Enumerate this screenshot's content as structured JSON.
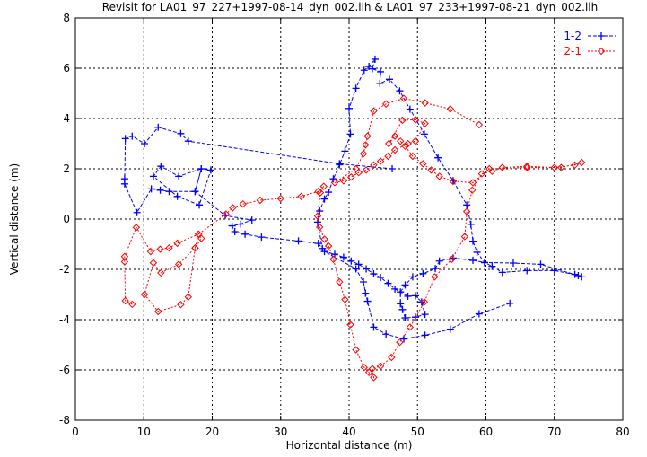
{
  "chart_data": {
    "type": "line",
    "title": "Revisit for LA01_97_227+1997-08-14_dyn_002.llh & LA01_97_233+1997-08-21_dyn_002.llh",
    "xlabel": "Horizontal distance (m)",
    "ylabel": "Vertical distance (m)",
    "xlim": [
      0,
      80
    ],
    "ylim": [
      -8,
      8
    ],
    "xticks": [
      "0",
      "10",
      "20",
      "30",
      "40",
      "50",
      "60",
      "70",
      "80"
    ],
    "yticks": [
      "-8",
      "-6",
      "-4",
      "-2",
      "0",
      "2",
      "4",
      "6",
      "8"
    ],
    "grid": true,
    "legend_position": "top-right",
    "series": [
      {
        "name": "1-2",
        "color": "#0000ff",
        "marker": "plus",
        "points": [
          [
            46.3,
            2.0
          ],
          [
            38.6,
            2.2
          ],
          [
            16.5,
            3.1
          ],
          [
            15.4,
            3.4
          ],
          [
            12.1,
            3.65
          ],
          [
            10.1,
            3.0
          ],
          [
            8.3,
            3.3
          ],
          [
            7.3,
            3.2
          ],
          [
            7.2,
            1.6
          ],
          [
            7.2,
            1.4
          ],
          [
            9.0,
            0.26
          ],
          [
            11.1,
            1.2
          ],
          [
            12.4,
            1.15
          ],
          [
            13.7,
            1.1
          ],
          [
            17.5,
            1.1
          ],
          [
            18.4,
            2.0
          ],
          [
            19.8,
            1.95
          ],
          [
            18.1,
            0.56
          ],
          [
            14.9,
            0.9
          ],
          [
            11.4,
            1.7
          ],
          [
            12.5,
            2.1
          ],
          [
            15.1,
            1.7
          ],
          [
            18.4,
            2.0
          ],
          [
            17.5,
            1.1
          ],
          [
            21.9,
            0.14
          ],
          [
            25.8,
            -0.04
          ],
          [
            24.1,
            -0.2
          ],
          [
            22.9,
            -0.27
          ],
          [
            23.3,
            -0.5
          ],
          [
            24.8,
            -0.6
          ],
          [
            27.2,
            -0.72
          ],
          [
            32.6,
            -0.87
          ],
          [
            35.5,
            -0.97
          ],
          [
            36.1,
            -1.17
          ],
          [
            35.4,
            -0.12
          ],
          [
            35.7,
            0.32
          ],
          [
            36.4,
            0.8
          ],
          [
            37.0,
            1.07
          ],
          [
            37.7,
            1.6
          ],
          [
            38.6,
            2.16
          ],
          [
            39.4,
            2.7
          ],
          [
            40.2,
            3.38
          ],
          [
            40.0,
            4.4
          ],
          [
            41.0,
            5.2
          ],
          [
            42.2,
            5.92
          ],
          [
            42.9,
            6.07
          ],
          [
            43.8,
            6.36
          ],
          [
            43.4,
            5.98
          ],
          [
            44.6,
            5.86
          ],
          [
            44.5,
            5.4
          ],
          [
            45.9,
            5.56
          ],
          [
            47.4,
            5.1
          ],
          [
            48.9,
            4.37
          ],
          [
            51.0,
            3.38
          ],
          [
            53.0,
            2.44
          ],
          [
            55.2,
            1.53
          ],
          [
            57.2,
            0.56
          ],
          [
            57.8,
            -0.21
          ],
          [
            58.1,
            -0.88
          ],
          [
            58.7,
            -1.32
          ],
          [
            59.8,
            -1.73
          ],
          [
            60.9,
            -1.88
          ],
          [
            62.4,
            -2.12
          ],
          [
            66.0,
            -2.05
          ],
          [
            70.0,
            -2.05
          ],
          [
            73.0,
            -2.2
          ],
          [
            74.0,
            -2.3
          ],
          [
            73.5,
            -2.25
          ],
          [
            68.0,
            -1.8
          ],
          [
            64.0,
            -1.75
          ],
          [
            59.8,
            -1.73
          ],
          [
            58.1,
            -1.64
          ],
          [
            55.2,
            -1.55
          ],
          [
            53.2,
            -1.67
          ],
          [
            52.6,
            -1.97
          ],
          [
            50.8,
            -2.17
          ],
          [
            49.3,
            -2.3
          ],
          [
            48.2,
            -2.62
          ],
          [
            47.5,
            -2.9
          ],
          [
            47.5,
            -3.37
          ],
          [
            47.8,
            -3.6
          ],
          [
            48.2,
            -3.93
          ],
          [
            49.7,
            -3.9
          ],
          [
            51.1,
            -3.79
          ],
          [
            50.6,
            -3.3
          ],
          [
            49.7,
            -3.05
          ],
          [
            48.6,
            -3.07
          ],
          [
            46.7,
            -2.78
          ],
          [
            45.7,
            -2.56
          ],
          [
            44.6,
            -2.32
          ],
          [
            43.6,
            -2.18
          ],
          [
            42.5,
            -1.98
          ],
          [
            41.4,
            -1.8
          ],
          [
            40.3,
            -1.67
          ],
          [
            39.2,
            -1.52
          ],
          [
            37.9,
            -1.4
          ],
          [
            36.4,
            -1.29
          ],
          [
            41.0,
            -1.98
          ],
          [
            42.1,
            -2.5
          ],
          [
            42.4,
            -2.95
          ],
          [
            42.7,
            -3.27
          ],
          [
            43.6,
            -4.3
          ],
          [
            45.4,
            -4.58
          ],
          [
            48.0,
            -4.77
          ],
          [
            51.1,
            -4.62
          ],
          [
            54.8,
            -4.38
          ],
          [
            59.0,
            -3.77
          ],
          [
            63.5,
            -3.35
          ]
        ]
      },
      {
        "name": "2-1",
        "color": "#ff0000",
        "marker": "diamond",
        "points": [
          [
            8.3,
            -3.39
          ],
          [
            7.3,
            -3.25
          ],
          [
            7.2,
            -1.7
          ],
          [
            7.2,
            -1.49
          ],
          [
            8.9,
            -0.33
          ],
          [
            11.0,
            -1.29
          ],
          [
            12.4,
            -1.2
          ],
          [
            13.7,
            -1.15
          ],
          [
            14.9,
            -0.96
          ],
          [
            18.0,
            -0.6
          ],
          [
            18.4,
            -0.77
          ],
          [
            17.5,
            -1.15
          ],
          [
            16.5,
            -3.1
          ],
          [
            15.4,
            -3.4
          ],
          [
            12.1,
            -3.68
          ],
          [
            10.1,
            -3.0
          ],
          [
            11.4,
            -1.74
          ],
          [
            12.5,
            -2.14
          ],
          [
            15.1,
            -1.8
          ],
          [
            17.5,
            -1.15
          ],
          [
            18.0,
            -0.6
          ],
          [
            22.0,
            0.2
          ],
          [
            23.0,
            0.45
          ],
          [
            24.5,
            0.6
          ],
          [
            27.0,
            0.75
          ],
          [
            30.0,
            0.82
          ],
          [
            33.0,
            0.9
          ],
          [
            35.5,
            1.1
          ],
          [
            36.3,
            1.3
          ],
          [
            35.8,
            1.05
          ],
          [
            35.4,
            0.12
          ],
          [
            35.7,
            -0.32
          ],
          [
            36.4,
            -0.8
          ],
          [
            37.0,
            -1.07
          ],
          [
            37.7,
            -1.6
          ],
          [
            38.6,
            -2.5
          ],
          [
            39.4,
            -3.2
          ],
          [
            40.2,
            -4.2
          ],
          [
            41.0,
            -5.2
          ],
          [
            42.2,
            -5.9
          ],
          [
            42.9,
            -6.1
          ],
          [
            43.6,
            -6.3
          ],
          [
            43.4,
            -5.95
          ],
          [
            44.6,
            -5.85
          ],
          [
            46.2,
            -5.5
          ],
          [
            47.4,
            -4.9
          ],
          [
            48.9,
            -4.3
          ],
          [
            51.0,
            -3.3
          ],
          [
            52.5,
            -2.3
          ],
          [
            55.0,
            -1.6
          ],
          [
            56.9,
            -0.7
          ],
          [
            57.2,
            0.3
          ],
          [
            58.0,
            1.15
          ],
          [
            59.4,
            1.8
          ],
          [
            60.9,
            1.9
          ],
          [
            62.4,
            2.05
          ],
          [
            66.0,
            2.1
          ],
          [
            70.0,
            2.05
          ],
          [
            73.0,
            2.15
          ],
          [
            74.0,
            2.25
          ],
          [
            71.0,
            2.05
          ],
          [
            66.0,
            2.05
          ],
          [
            60.5,
            2.0
          ],
          [
            58.1,
            1.45
          ],
          [
            55.2,
            1.5
          ],
          [
            53.2,
            1.7
          ],
          [
            52.0,
            1.95
          ],
          [
            50.8,
            2.2
          ],
          [
            49.3,
            2.5
          ],
          [
            48.2,
            2.9
          ],
          [
            47.5,
            3.1
          ],
          [
            46.7,
            3.3
          ],
          [
            45.8,
            3.0
          ],
          [
            47.8,
            3.93
          ],
          [
            49.7,
            3.95
          ],
          [
            51.1,
            3.8
          ],
          [
            49.7,
            3.1
          ],
          [
            48.6,
            3.0
          ],
          [
            46.7,
            2.75
          ],
          [
            45.7,
            2.5
          ],
          [
            44.6,
            2.3
          ],
          [
            43.6,
            2.15
          ],
          [
            42.5,
            1.95
          ],
          [
            41.4,
            1.85
          ],
          [
            40.3,
            1.67
          ],
          [
            39.2,
            1.52
          ],
          [
            37.9,
            1.45
          ],
          [
            41.0,
            2.0
          ],
          [
            42.1,
            2.6
          ],
          [
            42.4,
            2.95
          ],
          [
            42.7,
            3.3
          ],
          [
            43.6,
            4.3
          ],
          [
            45.4,
            4.58
          ],
          [
            48.0,
            4.8
          ],
          [
            51.1,
            4.62
          ],
          [
            54.8,
            4.38
          ],
          [
            59.0,
            3.75
          ]
        ]
      }
    ]
  }
}
